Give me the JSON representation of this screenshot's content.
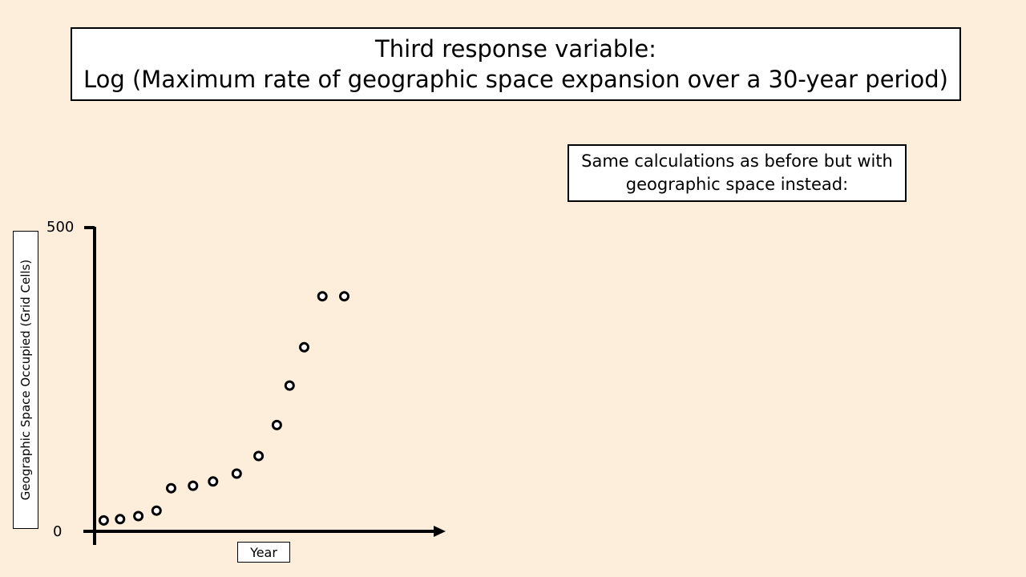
{
  "title": {
    "line1": "Third response variable:",
    "line2": "Log (Maximum rate of geographic space expansion over a 30-year period)"
  },
  "note": {
    "line1": "Same calculations as before but with",
    "line2": "geographic space instead:"
  },
  "chart_data": {
    "type": "scatter",
    "xlabel": "Year",
    "ylabel": "Geographic Space Occupied (Grid Cells)",
    "ylim": [
      0,
      500
    ],
    "y_tick_labels": [
      "0",
      "500"
    ],
    "x_tick_labels": [],
    "grid": false,
    "x_range": [
      0,
      19
    ],
    "points": [
      {
        "x": 0.5,
        "y": 18
      },
      {
        "x": 1.4,
        "y": 20
      },
      {
        "x": 2.4,
        "y": 25
      },
      {
        "x": 3.4,
        "y": 34
      },
      {
        "x": 4.2,
        "y": 71
      },
      {
        "x": 5.4,
        "y": 75
      },
      {
        "x": 6.5,
        "y": 82
      },
      {
        "x": 7.8,
        "y": 95
      },
      {
        "x": 9.0,
        "y": 124
      },
      {
        "x": 10.0,
        "y": 175
      },
      {
        "x": 10.7,
        "y": 240
      },
      {
        "x": 11.5,
        "y": 303
      },
      {
        "x": 12.5,
        "y": 387
      },
      {
        "x": 13.7,
        "y": 387
      }
    ]
  }
}
